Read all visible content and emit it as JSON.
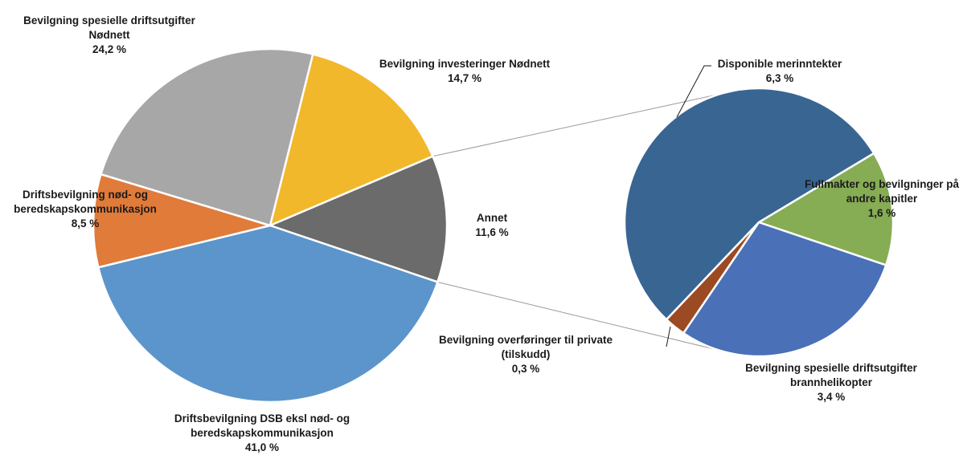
{
  "chart_data": {
    "type": "pie",
    "title": "",
    "main_pie": {
      "slices": [
        {
          "label_lines": [
            "Bevilgning investeringer Nødnett"
          ],
          "value_label": "14,7 %",
          "value": 14.7,
          "color": "#f2b82b"
        },
        {
          "label_lines": [
            "Annet"
          ],
          "value_label": "11,6 %",
          "value": 11.6,
          "color": "#6b6b6b"
        },
        {
          "label_lines": [
            "Driftsbevilgning DSB eksl nød- og",
            "beredskapskommunikasjon"
          ],
          "value_label": "41,0 %",
          "value": 41.0,
          "color": "#5b95cb"
        },
        {
          "label_lines": [
            "Driftsbevilgning nød- og",
            "beredskapskommunikasjon"
          ],
          "value_label": "8,5 %",
          "value": 8.5,
          "color": "#e07b3a"
        },
        {
          "label_lines": [
            "Bevilgning spesielle driftsutgifter",
            "Nødnett"
          ],
          "value_label": "24,2 %",
          "value": 24.2,
          "color": "#a7a7a7"
        }
      ]
    },
    "secondary_pie": {
      "breakdown_of": "Annet",
      "slices": [
        {
          "label_lines": [
            "Fullmakter og bevilgninger på",
            "andre kapitler"
          ],
          "value_label": "1,6 %",
          "value": 1.6,
          "color": "#86ac54"
        },
        {
          "label_lines": [
            "Bevilgning spesielle driftsutgifter",
            "brannhelikopter"
          ],
          "value_label": "3,4 %",
          "value": 3.4,
          "color": "#4a70b7"
        },
        {
          "label_lines": [
            "Bevilgning overføringer til private",
            "(tilskudd)"
          ],
          "value_label": "0,3 %",
          "value": 0.3,
          "color": "#9c4a23"
        },
        {
          "label_lines": [
            "Disponible merinntekter"
          ],
          "value_label": "6,3 %",
          "value": 6.3,
          "color": "#396593"
        }
      ]
    },
    "legend": "none"
  }
}
